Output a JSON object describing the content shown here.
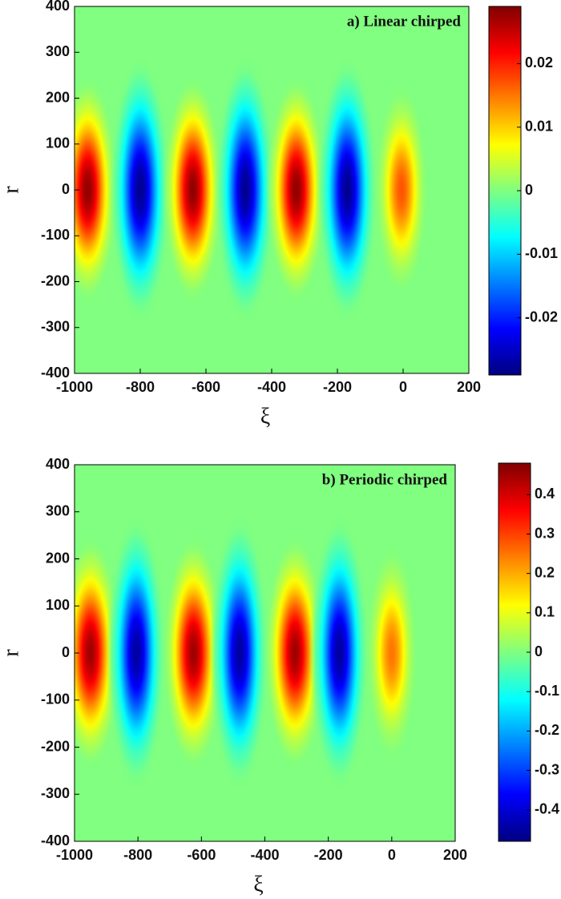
{
  "chart_data": [
    {
      "type": "heatmap",
      "title": "a) Linear chirped",
      "xlabel": "ξ",
      "ylabel": "r",
      "xlim": [
        -1000,
        200
      ],
      "ylim": [
        -400,
        400
      ],
      "xticks": [
        -1000,
        -800,
        -600,
        -400,
        -200,
        0,
        200
      ],
      "yticks": [
        -400,
        -300,
        -200,
        -100,
        0,
        100,
        200,
        300,
        400
      ],
      "colorbar": {
        "lim": [
          -0.029,
          0.029
        ],
        "ticks": [
          -0.02,
          -0.01,
          0,
          0.01,
          0.02
        ]
      },
      "peaks": {
        "x": [
          -960,
          -800,
          -640,
          -480,
          -325,
          -170,
          -5
        ],
        "y": [
          0,
          0,
          0,
          0,
          0,
          0,
          0
        ],
        "values": [
          0.028,
          -0.028,
          0.028,
          -0.028,
          0.028,
          -0.028,
          0.017
        ],
        "x_width": [
          95,
          95,
          95,
          95,
          95,
          95,
          85
        ],
        "y_width": [
          260,
          300,
          260,
          300,
          260,
          300,
          240
        ]
      }
    },
    {
      "type": "heatmap",
      "title": "b) Periodic chirped",
      "xlabel": "ξ",
      "ylabel": "r",
      "xlim": [
        -1000,
        200
      ],
      "ylim": [
        -400,
        400
      ],
      "xticks": [
        -1000,
        -800,
        -600,
        -400,
        -200,
        0,
        200
      ],
      "yticks": [
        -400,
        -300,
        -200,
        -100,
        0,
        100,
        200,
        300,
        400
      ],
      "colorbar": {
        "lim": [
          -0.48,
          0.48
        ],
        "ticks": [
          -0.4,
          -0.3,
          -0.2,
          -0.1,
          0,
          0.1,
          0.2,
          0.3,
          0.4
        ]
      },
      "peaks": {
        "x": [
          -950,
          -805,
          -625,
          -480,
          -305,
          -165,
          0
        ],
        "y": [
          0,
          0,
          0,
          0,
          0,
          0,
          0
        ],
        "values": [
          0.45,
          -0.45,
          0.45,
          -0.45,
          0.45,
          -0.45,
          0.25
        ],
        "x_width": [
          100,
          95,
          100,
          95,
          100,
          95,
          85
        ],
        "y_width": [
          260,
          300,
          260,
          300,
          260,
          300,
          240
        ]
      }
    }
  ]
}
